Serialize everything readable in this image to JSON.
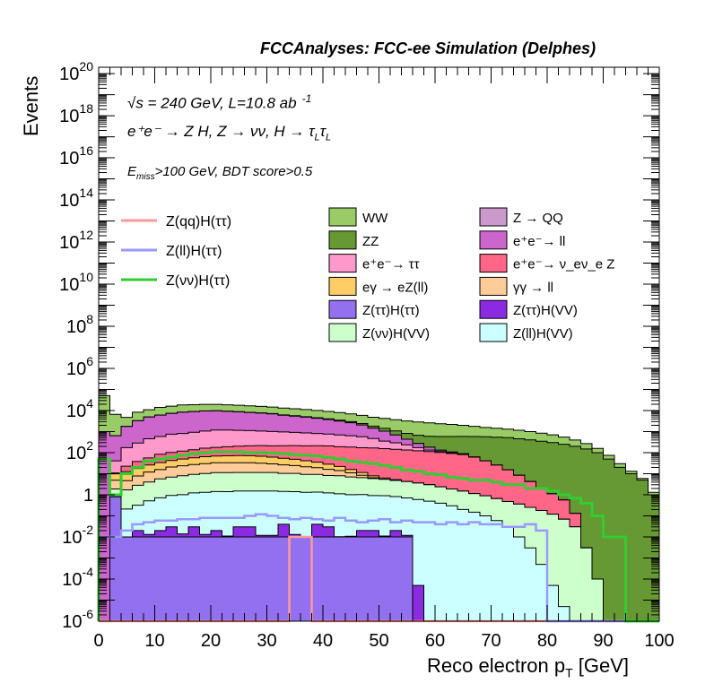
{
  "chart_data": {
    "type": "area",
    "header": "FCCAnalyses: FCC-ee Simulation (Delphes)",
    "xlabel": "Reco electron p",
    "xlabel_sub": "T",
    "xlabel_unit": "[GeV]",
    "ylabel": "Events",
    "xlim": [
      0,
      100
    ],
    "ylim": [
      1e-06,
      2e+20
    ],
    "log_y": true,
    "grid": false,
    "x_ticks": [
      "0",
      "10",
      "20",
      "30",
      "40",
      "50",
      "60",
      "70",
      "80",
      "90",
      "100"
    ],
    "y_ticks": [
      {
        "base": "10",
        "exp": "-6",
        "value": 1e-06
      },
      {
        "base": "10",
        "exp": "-4",
        "value": 0.0001
      },
      {
        "base": "10",
        "exp": "-2",
        "value": 0.01
      },
      {
        "base": "1",
        "exp": "",
        "value": 1
      },
      {
        "base": "10",
        "exp": "2",
        "value": 100.0
      },
      {
        "base": "10",
        "exp": "4",
        "value": 10000.0
      },
      {
        "base": "10",
        "exp": "6",
        "value": 1000000.0
      },
      {
        "base": "10",
        "exp": "8",
        "value": 100000000.0
      },
      {
        "base": "10",
        "exp": "10",
        "value": 10000000000.0
      },
      {
        "base": "10",
        "exp": "12",
        "value": 1000000000000.0
      },
      {
        "base": "10",
        "exp": "14",
        "value": 100000000000000.0
      },
      {
        "base": "10",
        "exp": "16",
        "value": 1e+16
      },
      {
        "base": "10",
        "exp": "18",
        "value": 1e+18
      },
      {
        "base": "10",
        "exp": "20",
        "value": 1e+20
      }
    ],
    "annotations": {
      "energy": "√s = 240 GeV, L=10.8 ab",
      "energy_sup": "-1",
      "process": "e⁺e⁻ → Z H, Z → νν, H → τ",
      "process_sub1": "L",
      "process_tau": "τ",
      "process_sub2": "L",
      "cut_pre": "E",
      "cut_sub": "miss",
      "cut_post": ">100 GeV, BDT score>0.5"
    },
    "bin_width": 2,
    "stack": [
      {
        "name": "Z(ττ)H(ττ)",
        "color": "#9370f0",
        "values": [
          0,
          0.8,
          0.01,
          0.01,
          0.01,
          0.01,
          0.01,
          0.01,
          0.01,
          0.01,
          0.01,
          0.01,
          0.01,
          0.01,
          0.01,
          0.01,
          0.01,
          0.01,
          0.01,
          0.01,
          0.01,
          0.01,
          0.01,
          0.01,
          0.01,
          0.01,
          0.01,
          0.01,
          0,
          0,
          0,
          0,
          0,
          0,
          0,
          0,
          0,
          0,
          0,
          0,
          0,
          0,
          0,
          0,
          0,
          0,
          0,
          0,
          0,
          0
        ]
      },
      {
        "name": "Z(ττ)H(VV)",
        "color": "#8a2be2",
        "values": [
          0,
          0,
          3e-05,
          0.01,
          0.003,
          0.01,
          0.02,
          0.004,
          0.02,
          0.003,
          0.01,
          0.001,
          0.02,
          0.02,
          0.002,
          0.002,
          0.03,
          0.003,
          0.0005,
          0.03,
          0.02,
          0.0003,
          0.0007,
          0.01,
          0.01,
          0.001,
          0.01,
          0.002,
          5e-05,
          0,
          0,
          0,
          0,
          0,
          0,
          0,
          0,
          0,
          0,
          0,
          0,
          0,
          0,
          0,
          0,
          0,
          0,
          0,
          0,
          0
        ]
      },
      {
        "name": "Z(ll)H(VV)",
        "color": "#ccffff",
        "values": [
          0,
          0.1,
          0.2,
          0.3,
          0.5,
          0.7,
          0.9,
          1.0,
          1.2,
          1.3,
          1.4,
          1.4,
          1.5,
          1.5,
          1.5,
          1.5,
          1.4,
          1.4,
          1.3,
          1.3,
          1.2,
          1.1,
          1.0,
          1.0,
          0.9,
          0.9,
          0.8,
          0.7,
          0.6,
          0.5,
          0.4,
          0.3,
          0.2,
          0.15,
          0.1,
          0.06,
          0.03,
          0.01,
          0.003,
          0.0005,
          5e-05,
          5e-06,
          0,
          0,
          0,
          0,
          0,
          0,
          0,
          0
        ]
      },
      {
        "name": "Z(νν)H(VV)",
        "color": "#ccffcc",
        "values": [
          0,
          1,
          1.5,
          2.5,
          3.5,
          5,
          6,
          7,
          8,
          9,
          10,
          10,
          10,
          10,
          10,
          10,
          9,
          9,
          8,
          8,
          7,
          7,
          6,
          5.5,
          5,
          4.5,
          4,
          3.5,
          3,
          2.5,
          2,
          1.6,
          1.3,
          1,
          0.8,
          0.6,
          0.45,
          0.35,
          0.25,
          0.18,
          0.12,
          0.07,
          0.03,
          0.003,
          0.0001,
          0,
          0,
          0,
          0,
          0
        ]
      },
      {
        "name": "γγ → ll",
        "color": "#ffcc99",
        "values": [
          0,
          3,
          3,
          5,
          8,
          10,
          14,
          16,
          18,
          20,
          22,
          22,
          22,
          22,
          20,
          18,
          16,
          14,
          12,
          10,
          8,
          6,
          4,
          2,
          0.5,
          0.1,
          0.01,
          0,
          0,
          0,
          0,
          0,
          0,
          0,
          0,
          0,
          0,
          0,
          0,
          0,
          0,
          0,
          0,
          0,
          0,
          0,
          0,
          0,
          0,
          0
        ]
      },
      {
        "name": "eγ → eZ(ll)",
        "color": "#ffcc66",
        "values": [
          0,
          5,
          8,
          10,
          14,
          18,
          22,
          26,
          30,
          34,
          36,
          38,
          40,
          38,
          36,
          32,
          28,
          24,
          20,
          16,
          12,
          8,
          5,
          3,
          1.5,
          0.8,
          0.4,
          0.1,
          0,
          0,
          0,
          0,
          0,
          0,
          0,
          0,
          0,
          0,
          0,
          0,
          0,
          0,
          0,
          0,
          0,
          0,
          0,
          0,
          0,
          0
        ]
      },
      {
        "name": "e⁺e⁻ → ν_eν_e Z",
        "color": "#ff6688",
        "values": [
          0,
          1,
          10,
          20,
          30,
          50,
          60,
          70,
          80,
          100,
          110,
          120,
          130,
          140,
          150,
          150,
          160,
          170,
          170,
          180,
          180,
          170,
          170,
          160,
          160,
          150,
          140,
          130,
          120,
          110,
          100,
          90,
          80,
          60,
          40,
          25,
          15,
          8,
          4,
          2,
          1,
          0.5,
          0.1,
          0,
          0,
          0,
          0,
          0,
          0,
          0
        ]
      },
      {
        "name": "e⁺e⁻ → ττ",
        "color": "#ff99cc",
        "values": [
          0,
          30,
          150,
          250,
          400,
          500,
          650,
          700,
          800,
          900,
          1000,
          1000,
          950,
          900,
          850,
          800,
          750,
          700,
          650,
          600,
          550,
          500,
          450,
          400,
          300,
          200,
          150,
          100,
          50,
          20,
          10,
          5,
          2,
          0.5,
          0,
          0,
          0,
          0,
          0,
          0,
          0,
          0,
          0,
          0,
          0,
          0,
          0,
          0,
          0,
          0
        ]
      },
      {
        "name": "e⁺e⁻ → ll",
        "color": "#cc66cc",
        "values": [
          1000,
          600,
          1600,
          3000,
          4500,
          5500,
          6500,
          7500,
          8000,
          8500,
          8500,
          8000,
          7500,
          7000,
          6500,
          6000,
          5000,
          4500,
          4000,
          3500,
          3000,
          2500,
          2000,
          1500,
          1000,
          700,
          400,
          200,
          100,
          50,
          20,
          10,
          5,
          1,
          0,
          0,
          0,
          0,
          0,
          0,
          0,
          0,
          0,
          0,
          0,
          0,
          0,
          0,
          0,
          0
        ]
      },
      {
        "name": "Z → QQ",
        "color": "#cc99cc",
        "values": [
          0,
          0,
          0,
          0,
          0,
          0,
          0,
          0,
          0,
          0,
          0,
          0,
          0,
          0,
          0,
          0,
          0,
          0,
          0,
          0,
          0,
          0,
          0,
          0,
          0,
          0,
          0,
          0,
          0,
          0,
          0,
          0,
          0,
          0,
          0,
          0,
          0,
          0,
          0,
          0,
          0,
          0,
          0,
          0,
          0,
          0,
          0,
          0,
          0,
          0
        ]
      },
      {
        "name": "ZZ",
        "color": "#669933",
        "values": [
          0,
          0,
          0,
          0,
          10,
          20,
          30,
          40,
          60,
          80,
          100,
          120,
          140,
          160,
          180,
          200,
          220,
          240,
          260,
          280,
          300,
          320,
          340,
          350,
          360,
          370,
          380,
          390,
          400,
          420,
          450,
          480,
          500,
          520,
          530,
          520,
          500,
          450,
          400,
          350,
          300,
          250,
          200,
          150,
          100,
          50,
          20,
          10,
          5,
          1
        ]
      },
      {
        "name": "WW",
        "color": "#99cc66",
        "values": [
          50000,
          6000,
          3000,
          5000,
          6000,
          8000,
          9000,
          10000,
          10000,
          10000,
          10000,
          9500,
          9000,
          8500,
          8000,
          7500,
          7000,
          6500,
          6000,
          5500,
          5000,
          4500,
          4000,
          3500,
          3000,
          2800,
          2600,
          2400,
          2200,
          2000,
          1800,
          1600,
          1400,
          1200,
          1000,
          900,
          800,
          700,
          600,
          500,
          400,
          300,
          200,
          120,
          60,
          25,
          10,
          3,
          1,
          0.3
        ]
      }
    ],
    "signals": [
      {
        "name": "Z(qq)H(ττ)",
        "color": "#ff9999",
        "values": [
          0,
          0,
          0,
          0,
          0,
          0,
          0,
          0,
          0,
          0,
          0,
          0,
          0,
          0,
          0,
          0,
          0,
          0.01,
          0.01,
          0,
          0,
          0,
          0,
          0,
          0,
          0,
          0,
          0,
          0,
          0,
          0,
          0,
          0,
          0,
          0,
          0,
          0,
          0,
          0,
          0,
          0,
          0,
          0,
          0,
          0,
          0,
          0,
          0,
          0,
          0
        ]
      },
      {
        "name": "Z(ll)H(ττ)",
        "color": "#9999ff",
        "values": [
          0.01,
          0.01,
          0.02,
          0.04,
          0.05,
          0.06,
          0.06,
          0.07,
          0.07,
          0.08,
          0.08,
          0.08,
          0.08,
          0.1,
          0.12,
          0.1,
          0.08,
          0.07,
          0.08,
          0.07,
          0.06,
          0.08,
          0.06,
          0.05,
          0.06,
          0.07,
          0.05,
          0.06,
          0.05,
          0.05,
          0.04,
          0.05,
          0.04,
          0.05,
          0.04,
          0.04,
          0.03,
          0.03,
          0.04,
          0.02,
          5e-07,
          0,
          0,
          0,
          0,
          0,
          0,
          0,
          0,
          0
        ]
      },
      {
        "name": "Z(νν)H(ττ)",
        "color": "#33cc33",
        "values": [
          50,
          1,
          10,
          20,
          40,
          50,
          60,
          75,
          90,
          100,
          110,
          110,
          110,
          100,
          100,
          95,
          90,
          80,
          75,
          70,
          60,
          50,
          40,
          35,
          30,
          25,
          20,
          15,
          13,
          10,
          9,
          7,
          6,
          5,
          5,
          4,
          3,
          3,
          2,
          2,
          1.5,
          1,
          0.7,
          0.4,
          0.1,
          0.01,
          0.01,
          0,
          0,
          0
        ]
      }
    ],
    "legend_left": [
      "Z(qq)H(ττ)",
      "Z(ll)H(ττ)",
      "Z(νν)H(ττ)"
    ],
    "legend_cols": [
      [
        "WW",
        "ZZ",
        "e⁺e⁻→ ττ",
        "eγ → eZ(ll)",
        "Z(ττ)H(ττ)",
        "Z(νν)H(VV)"
      ],
      [
        "Z → QQ",
        "e⁺e⁻→ ll",
        "e⁺e⁻→ ν_eν_e Z",
        "γγ → ll",
        "Z(ττ)H(VV)",
        "Z(ll)H(VV)"
      ]
    ],
    "legend_colors": [
      [
        "#99cc66",
        "#669933",
        "#ff99cc",
        "#ffcc66",
        "#9370f0",
        "#ccffcc"
      ],
      [
        "#cc99cc",
        "#cc66cc",
        "#ff6688",
        "#ffcc99",
        "#8a2be2",
        "#ccffff"
      ]
    ]
  }
}
